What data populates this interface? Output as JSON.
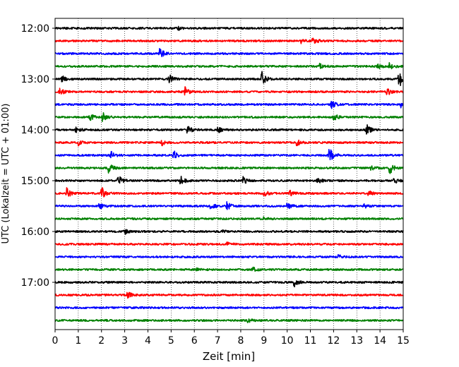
{
  "chart_data": {
    "type": "line",
    "subtype": "helicorder",
    "xlabel": "Zeit  [min]",
    "ylabel": "UTC (Lokalzeit = UTC + 01:00)",
    "xlim": [
      0,
      15
    ],
    "x_ticks": [
      "0",
      "1",
      "2",
      "3",
      "4",
      "5",
      "6",
      "7",
      "8",
      "9",
      "10",
      "11",
      "12",
      "13",
      "14",
      "15"
    ],
    "y_ticks": [
      "12:00",
      "13:00",
      "14:00",
      "15:00",
      "16:00",
      "17:00"
    ],
    "grid": "vertical dotted at each minute",
    "trace_colors": [
      "#000000",
      "#ff0000",
      "#0000ff",
      "#008000"
    ],
    "traces": [
      {
        "start": "12:00",
        "events": [
          [
            5.3,
            0.3
          ]
        ]
      },
      {
        "start": "12:15",
        "events": [
          [
            11.1,
            0.7
          ],
          [
            10.6,
            0.3
          ]
        ]
      },
      {
        "start": "12:30",
        "events": [
          [
            4.5,
            1.0
          ]
        ]
      },
      {
        "start": "12:45",
        "events": [
          [
            11.4,
            0.4
          ],
          [
            13.9,
            0.4
          ],
          [
            14.4,
            0.5
          ]
        ]
      },
      {
        "start": "13:00",
        "events": [
          [
            0.3,
            0.5
          ],
          [
            4.9,
            0.8
          ],
          [
            8.9,
            1.2
          ],
          [
            14.8,
            1.6
          ]
        ]
      },
      {
        "start": "13:15",
        "events": [
          [
            0.2,
            0.6
          ],
          [
            5.6,
            0.7
          ],
          [
            14.3,
            0.6
          ]
        ]
      },
      {
        "start": "13:30",
        "events": [
          [
            11.9,
            0.6
          ],
          [
            14.9,
            0.4
          ]
        ]
      },
      {
        "start": "13:45",
        "events": [
          [
            2.0,
            1.0
          ],
          [
            12.0,
            0.6
          ],
          [
            1.5,
            0.5
          ]
        ]
      },
      {
        "start": "14:00",
        "events": [
          [
            0.9,
            0.5
          ],
          [
            5.7,
            0.7
          ],
          [
            7.0,
            0.5
          ],
          [
            13.4,
            1.0
          ]
        ]
      },
      {
        "start": "14:15",
        "events": [
          [
            1.0,
            0.4
          ],
          [
            4.6,
            0.4
          ],
          [
            10.4,
            0.5
          ]
        ]
      },
      {
        "start": "14:30",
        "events": [
          [
            2.4,
            0.6
          ],
          [
            5.1,
            0.8
          ],
          [
            11.8,
            1.3
          ]
        ]
      },
      {
        "start": "14:45",
        "events": [
          [
            2.3,
            0.8
          ],
          [
            14.4,
            1.1
          ],
          [
            13.6,
            0.4
          ]
        ]
      },
      {
        "start": "15:00",
        "events": [
          [
            2.7,
            1.0
          ],
          [
            5.4,
            0.8
          ],
          [
            8.1,
            0.6
          ],
          [
            14.6,
            0.5
          ],
          [
            11.3,
            0.5
          ]
        ]
      },
      {
        "start": "15:15",
        "events": [
          [
            0.5,
            0.8
          ],
          [
            2.0,
            1.0
          ],
          [
            9.0,
            0.5
          ],
          [
            10.1,
            0.5
          ],
          [
            13.5,
            0.4
          ]
        ]
      },
      {
        "start": "15:30",
        "events": [
          [
            1.9,
            0.5
          ],
          [
            6.7,
            0.7
          ],
          [
            7.4,
            0.7
          ],
          [
            10.0,
            0.5
          ],
          [
            13.3,
            0.3
          ]
        ]
      },
      {
        "start": "15:45",
        "events": [
          [
            9.0,
            0.3
          ]
        ]
      },
      {
        "start": "16:00",
        "events": [
          [
            3.0,
            0.4
          ],
          [
            7.2,
            0.2
          ]
        ]
      },
      {
        "start": "16:15",
        "events": [
          [
            7.4,
            0.3
          ]
        ]
      },
      {
        "start": "16:30",
        "events": [
          [
            12.2,
            0.3
          ]
        ]
      },
      {
        "start": "16:45",
        "events": [
          [
            8.5,
            0.4
          ],
          [
            6.1,
            0.2
          ]
        ]
      },
      {
        "start": "17:00",
        "events": [
          [
            10.3,
            0.7
          ]
        ]
      },
      {
        "start": "17:15",
        "events": [
          [
            3.1,
            0.6
          ]
        ]
      },
      {
        "start": "17:30",
        "events": []
      },
      {
        "start": "17:45",
        "events": [
          [
            8.3,
            0.3
          ]
        ]
      }
    ]
  }
}
